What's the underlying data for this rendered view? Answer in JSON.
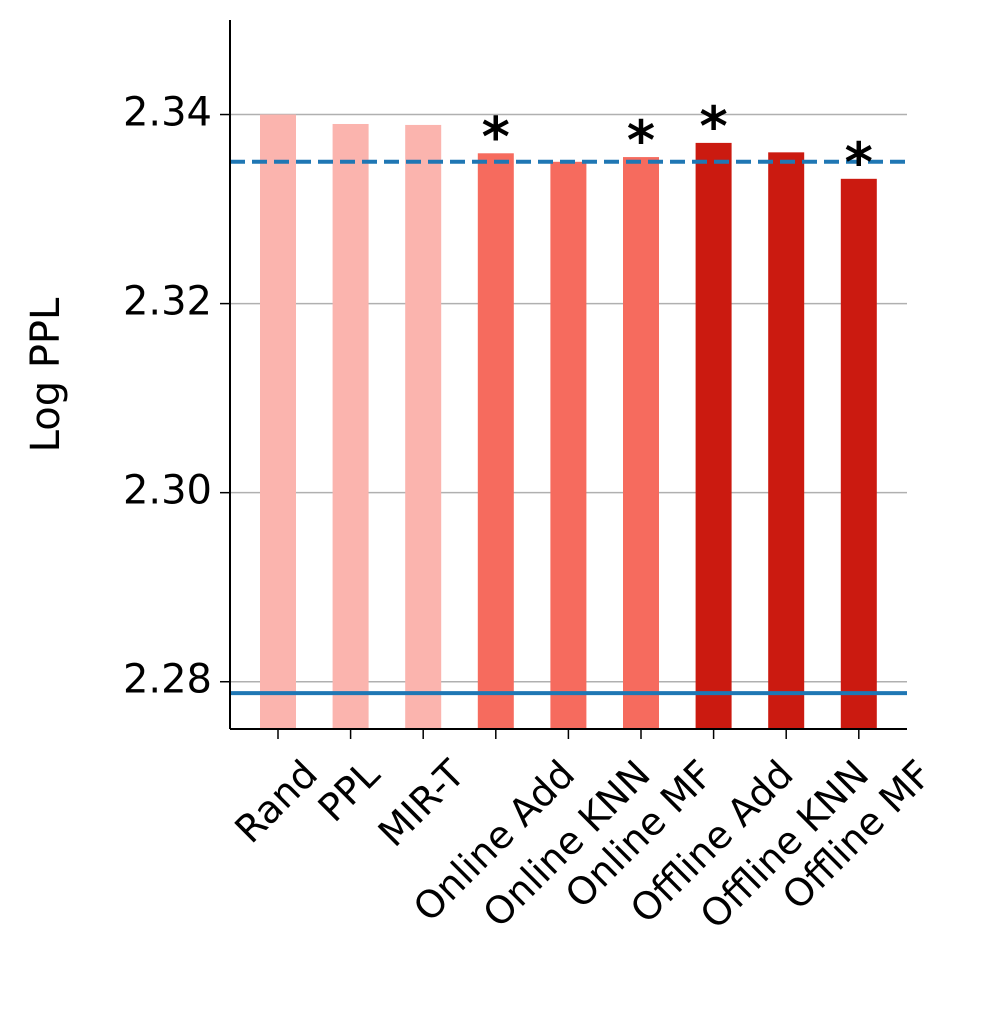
{
  "chart_data": {
    "type": "bar",
    "y_label": "Log PPL",
    "categories": [
      "Rand",
      "PPL",
      "MIR-T",
      "Online Add",
      "Online KNN",
      "Online MF",
      "Offline Add",
      "Offline KNN",
      "Offline MF"
    ],
    "values": [
      2.34,
      2.339,
      2.3389,
      2.3359,
      2.335,
      2.3355,
      2.337,
      2.336,
      2.3332
    ],
    "colors": [
      "#fbb4ae",
      "#fbb4ae",
      "#fbb4ae",
      "#f66b5e",
      "#f66b5e",
      "#f66b5e",
      "#cb1a10",
      "#cb1a10",
      "#cb1a10"
    ],
    "ylim": [
      2.275,
      2.35
    ],
    "yticks": [
      2.28,
      {
        "value": 2.3,
        "label": "2.30"
      },
      2.32,
      2.34
    ],
    "grid": true,
    "hlines": [
      {
        "y": 2.335,
        "color": "#1f77b4",
        "style": "dashed"
      },
      {
        "y": 2.2788,
        "color": "#1f77b4",
        "style": "solid"
      }
    ],
    "annotations": [
      {
        "text": "*",
        "category": "Online Add"
      },
      {
        "text": "*",
        "category": "Online MF"
      },
      {
        "text": "*",
        "category": "Offline Add"
      },
      {
        "text": "*",
        "category": "Offline MF"
      }
    ]
  }
}
